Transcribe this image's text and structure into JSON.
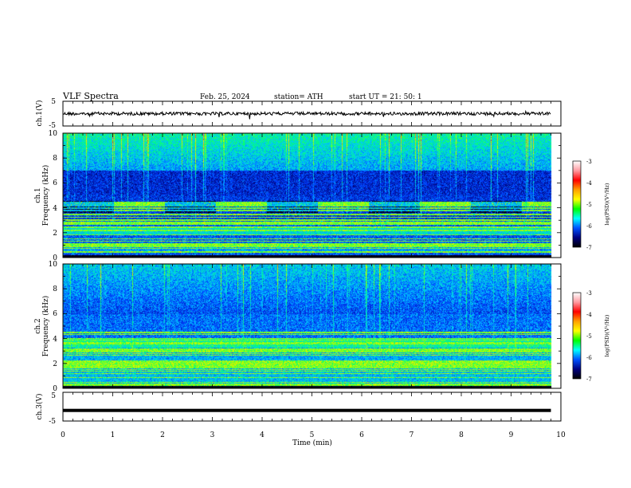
{
  "header": {
    "title": "VLF  Spectra",
    "date": "Feb. 25, 2024",
    "station": "station= ATH",
    "start": "start  UT  =    21: 50: 1"
  },
  "panels": {
    "ch1_wave": {
      "label": "ch.1(V)",
      "ticks": [
        "5",
        "-5"
      ]
    },
    "spec1": {
      "label_top": "ch.1",
      "label_bottom": "Frequency  (kHz)",
      "ticks": [
        "10",
        "8",
        "6",
        "4",
        "2",
        "0"
      ]
    },
    "spec2": {
      "label_top": "ch.2",
      "label_bottom": "Frequency  (kHz)",
      "ticks": [
        "10",
        "8",
        "6",
        "4",
        "2",
        "0"
      ]
    },
    "ch3_wave": {
      "label": "ch.3(V)",
      "ticks": [
        "5",
        "-5"
      ]
    }
  },
  "colorbar": {
    "label": "log(PSD)(V²/Hz)",
    "ticks": [
      "-3",
      "-4",
      "-5",
      "-6",
      "-7"
    ],
    "colors": [
      "#ffffff",
      "#ff9aa0",
      "#ff0000",
      "#ffa000",
      "#ffff00",
      "#00ff00",
      "#00ffff",
      "#0050ff",
      "#000080",
      "#000000"
    ]
  },
  "xaxis": {
    "label": "Time  (min)",
    "ticks": [
      "0",
      "1",
      "2",
      "3",
      "4",
      "5",
      "6",
      "7",
      "8",
      "9",
      "10"
    ]
  },
  "chart_data": [
    {
      "type": "line",
      "ylabel": "ch.1(V)",
      "xlabel": "Time  (min)",
      "xlim": [
        0,
        10
      ],
      "ylim": [
        -5,
        5
      ],
      "series": [
        {
          "x": [
            0,
            9.8
          ],
          "values": [
            0,
            0
          ]
        }
      ]
    },
    {
      "type": "heatmap",
      "ylabel": "ch.1  Frequency  (kHz)",
      "xlim": [
        0,
        10
      ],
      "ylim": [
        0,
        10
      ],
      "zlim": [
        -7,
        -3
      ]
    },
    {
      "type": "heatmap",
      "ylabel": "ch.2  Frequency  (kHz)",
      "xlim": [
        0,
        10
      ],
      "ylim": [
        0,
        10
      ],
      "zlim": [
        -7,
        -3
      ]
    },
    {
      "type": "line",
      "ylabel": "ch.3(V)",
      "xlabel": "Time  (min)",
      "xlim": [
        0,
        10
      ],
      "ylim": [
        -5,
        5
      ],
      "series": [
        {
          "x": [
            0,
            9.8
          ],
          "values": [
            -1.3,
            -1.3
          ]
        }
      ]
    }
  ]
}
